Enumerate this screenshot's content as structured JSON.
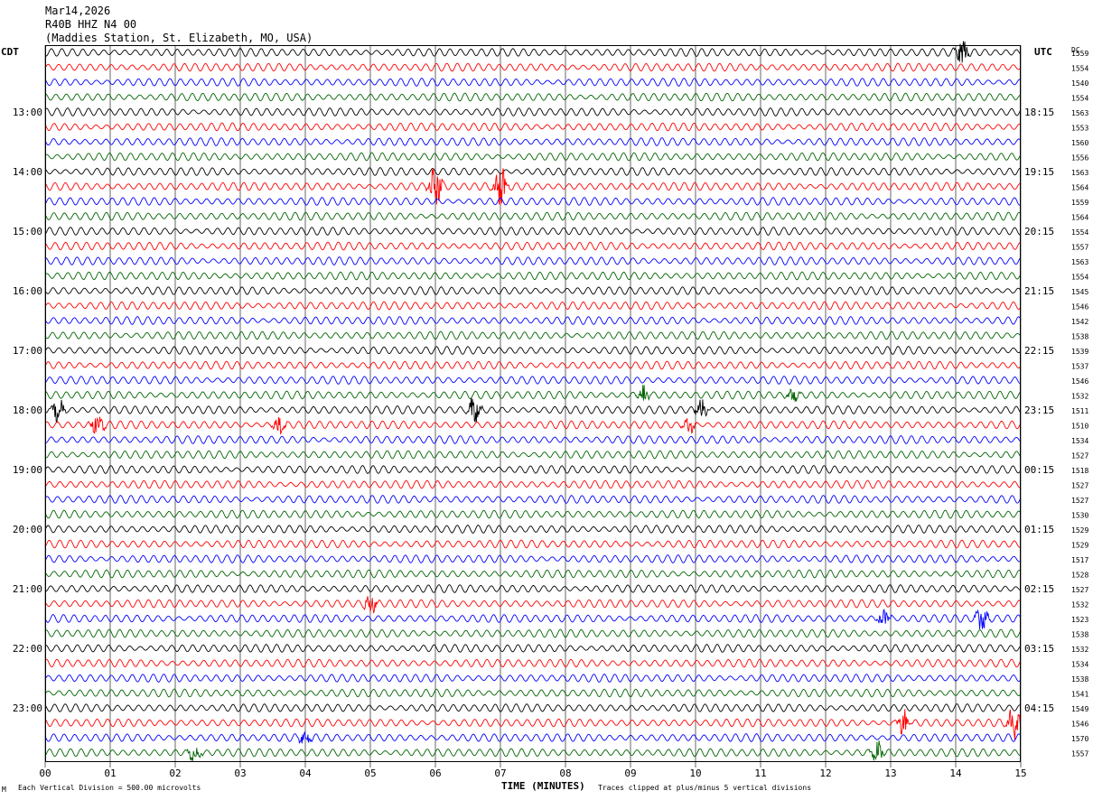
{
  "header": {
    "date": "Mar14,2026",
    "channel": "R40B HHZ N4 00",
    "station": "(Maddies Station, St. Elizabeth, MO, USA)"
  },
  "left_timezone": "CDT",
  "right_timezone": "UTC",
  "dc_header": "DC",
  "footer": {
    "scale": "Each Vertical Division =  500.00 microvolts",
    "clip": "Traces clipped at plus/minus 5 vertical divisions",
    "corner": "M"
  },
  "colors": {
    "trace_cycle": [
      "#000000",
      "#ff0000",
      "#0000ff",
      "#006400"
    ],
    "grid": "#000000"
  },
  "chart_data": {
    "type": "line",
    "title": "",
    "xlabel": "TIME (MINUTES)",
    "ylabel": "",
    "xlim": [
      0,
      15
    ],
    "x_ticks": [
      "00",
      "01",
      "02",
      "03",
      "04",
      "05",
      "06",
      "07",
      "08",
      "09",
      "10",
      "11",
      "12",
      "13",
      "14",
      "15"
    ],
    "grid": true,
    "rows_per_hour": 4,
    "trace_count": 48,
    "left_hour_labels": [
      "13:00",
      "14:00",
      "15:00",
      "16:00",
      "17:00",
      "18:00",
      "19:00",
      "20:00",
      "21:00",
      "22:00",
      "23:00"
    ],
    "right_hour_labels": [
      "18:15",
      "19:15",
      "20:15",
      "21:15",
      "22:15",
      "23:15",
      "00:15",
      "01:15",
      "02:15",
      "03:15",
      "04:15"
    ],
    "dc_values": [
      "1559",
      "1554",
      "1540",
      "1554",
      "1563",
      "1553",
      "1560",
      "1556",
      "1563",
      "1564",
      "1559",
      "1564",
      "1554",
      "1557",
      "1563",
      "1554",
      "1545",
      "1546",
      "1542",
      "1538",
      "1539",
      "1537",
      "1546",
      "1532",
      "1511",
      "1510",
      "1534",
      "1527",
      "1518",
      "1527",
      "1527",
      "1530",
      "1529",
      "1529",
      "1517",
      "1528",
      "1527",
      "1532",
      "1523",
      "1538",
      "1532",
      "1534",
      "1538",
      "1541",
      "1549",
      "1546",
      "1570",
      "1557"
    ],
    "events": [
      {
        "trace": 0,
        "minute": 14.1,
        "amp": 1.5
      },
      {
        "trace": 9,
        "minute": 6.0,
        "amp": 2.5
      },
      {
        "trace": 9,
        "minute": 7.0,
        "amp": 3.0
      },
      {
        "trace": 23,
        "minute": 9.2,
        "amp": 1.2
      },
      {
        "trace": 23,
        "minute": 11.5,
        "amp": 1.0
      },
      {
        "trace": 24,
        "minute": 0.2,
        "amp": 1.4
      },
      {
        "trace": 24,
        "minute": 6.6,
        "amp": 1.5
      },
      {
        "trace": 24,
        "minute": 10.1,
        "amp": 1.4
      },
      {
        "trace": 25,
        "minute": 0.8,
        "amp": 1.3
      },
      {
        "trace": 25,
        "minute": 3.6,
        "amp": 1.1
      },
      {
        "trace": 25,
        "minute": 9.9,
        "amp": 1.0
      },
      {
        "trace": 37,
        "minute": 5.0,
        "amp": 1.2
      },
      {
        "trace": 38,
        "minute": 12.9,
        "amp": 1.3
      },
      {
        "trace": 38,
        "minute": 14.4,
        "amp": 1.5
      },
      {
        "trace": 45,
        "minute": 13.2,
        "amp": 1.6
      },
      {
        "trace": 45,
        "minute": 14.9,
        "amp": 2.0
      },
      {
        "trace": 46,
        "minute": 4.0,
        "amp": 0.8
      },
      {
        "trace": 47,
        "minute": 2.3,
        "amp": 1.0
      },
      {
        "trace": 47,
        "minute": 12.8,
        "amp": 1.2
      }
    ]
  }
}
